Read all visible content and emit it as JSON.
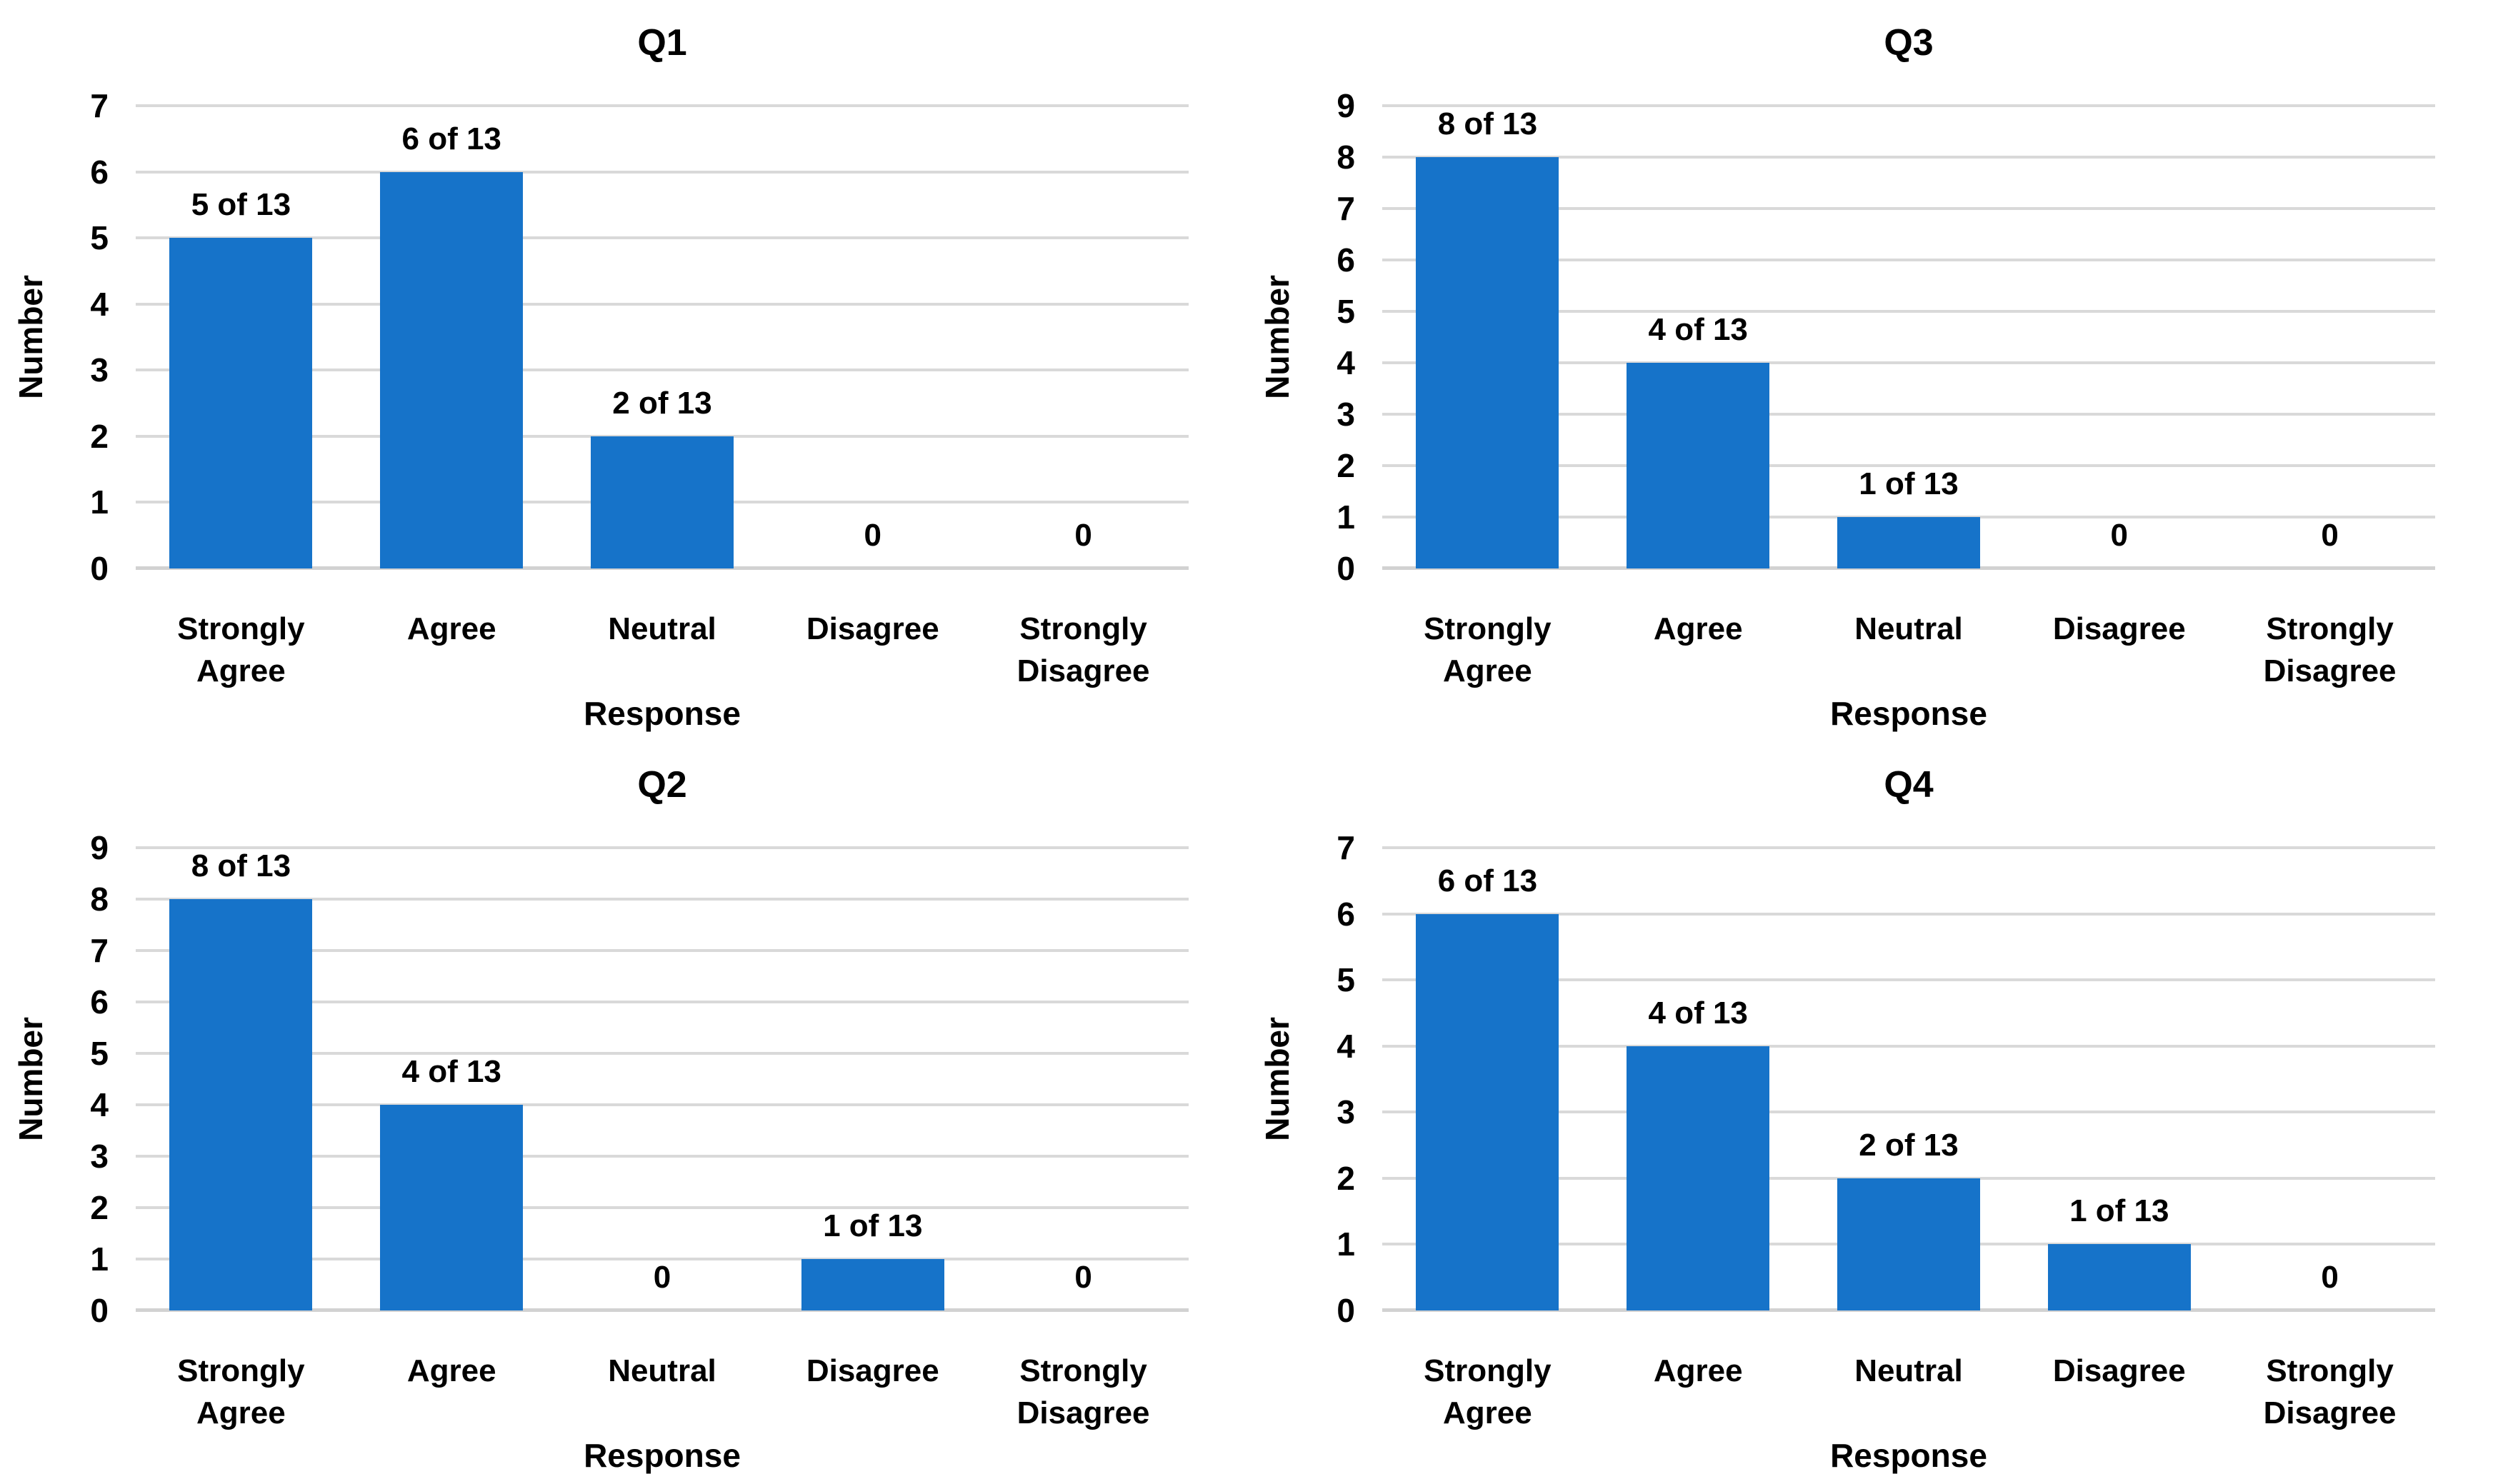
{
  "figure": {
    "background": "#ffffff",
    "layout": "2x2 grid of bar charts, order: Q1 top-left, Q3 top-right, Q2 bottom-left, Q4 bottom-right"
  },
  "colors": {
    "bar": "#1673c9",
    "gridline": "#d9d9d9",
    "baseline": "#d2d2d2",
    "text": "#000000"
  },
  "chart_data": [
    {
      "type": "bar",
      "title": "Q1",
      "categories": [
        "Strongly Agree",
        "Agree",
        "Neutral",
        "Disagree",
        "Strongly Disagree"
      ],
      "values": [
        5,
        6,
        2,
        0,
        0
      ],
      "data_labels": [
        "5 of 13",
        "6 of 13",
        "2 of 13",
        "0",
        "0"
      ],
      "xlabel": "Response",
      "ylabel": "Number",
      "ylim": [
        0,
        7
      ],
      "ytick_step": 1,
      "grid": true,
      "legend": "none"
    },
    {
      "type": "bar",
      "title": "Q3",
      "categories": [
        "Strongly Agree",
        "Agree",
        "Neutral",
        "Disagree",
        "Strongly Disagree"
      ],
      "values": [
        8,
        4,
        1,
        0,
        0
      ],
      "data_labels": [
        "8 of 13",
        "4 of 13",
        "1 of 13",
        "0",
        "0"
      ],
      "xlabel": "Response",
      "ylabel": "Number",
      "ylim": [
        0,
        9
      ],
      "ytick_step": 1,
      "grid": true,
      "legend": "none"
    },
    {
      "type": "bar",
      "title": "Q2",
      "categories": [
        "Strongly Agree",
        "Agree",
        "Neutral",
        "Disagree",
        "Strongly Disagree"
      ],
      "values": [
        8,
        4,
        0,
        1,
        0
      ],
      "data_labels": [
        "8 of 13",
        "4 of 13",
        "0",
        "1 of 13",
        "0"
      ],
      "xlabel": "Response",
      "ylabel": "Number",
      "ylim": [
        0,
        9
      ],
      "ytick_step": 1,
      "grid": true,
      "legend": "none"
    },
    {
      "type": "bar",
      "title": "Q4",
      "categories": [
        "Strongly Agree",
        "Agree",
        "Neutral",
        "Disagree",
        "Strongly Disagree"
      ],
      "values": [
        6,
        4,
        2,
        1,
        0
      ],
      "data_labels": [
        "6 of 13",
        "4 of 13",
        "2 of 13",
        "1 of 13",
        "0"
      ],
      "xlabel": "Response",
      "ylabel": "Number",
      "ylim": [
        0,
        7
      ],
      "ytick_step": 1,
      "grid": true,
      "legend": "none"
    }
  ]
}
